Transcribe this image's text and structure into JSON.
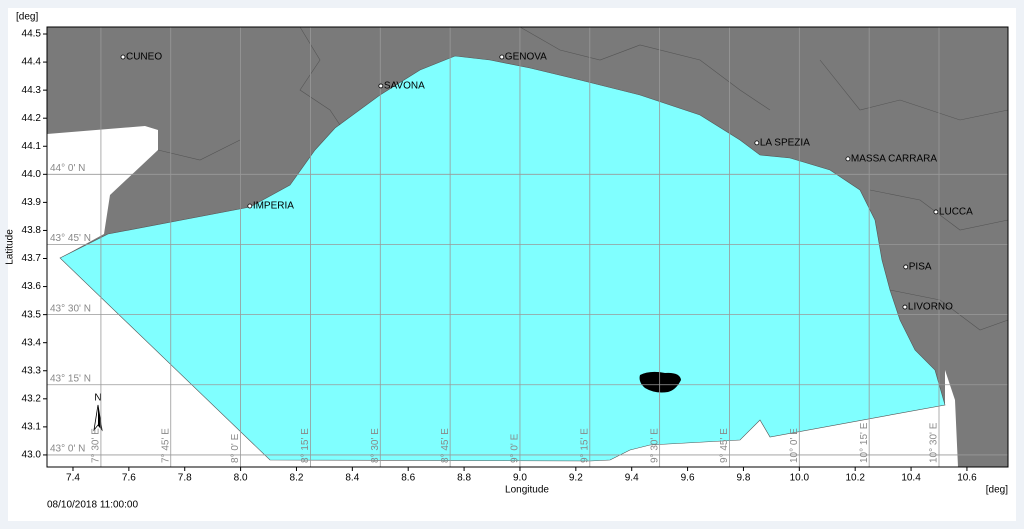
{
  "map": {
    "y_axis_unit": "[deg]",
    "x_axis_unit": "[deg]",
    "x_label": "Longitude",
    "y_label": "Latitude",
    "xlim": [
      7.307,
      10.747
    ],
    "ylim": [
      42.957,
      44.525
    ],
    "xticks": [
      7.4,
      7.6,
      7.8,
      {
        "value": 8,
        "label": "8.0"
      },
      8.2,
      8.4,
      8.6,
      8.8,
      {
        "value": 9,
        "label": "9.0"
      },
      9.2,
      9.4,
      9.6,
      9.8,
      {
        "value": 10,
        "label": "10.0"
      },
      10.2,
      10.4,
      10.6
    ],
    "yticks": [
      {
        "value": 43,
        "label": "43.0"
      },
      43.1,
      43.2,
      43.3,
      43.4,
      43.5,
      43.6,
      43.7,
      43.8,
      43.9,
      {
        "value": 44,
        "label": "44.0"
      },
      44.1,
      44.2,
      44.3,
      44.4,
      44.5
    ],
    "parallels": [
      {
        "value": 43,
        "label": "43° 0' N"
      },
      {
        "value": 43.25,
        "label": "43° 15' N"
      },
      {
        "value": 43.5,
        "label": "43° 30' N"
      },
      {
        "value": 43.75,
        "label": "43° 45' N"
      },
      {
        "value": 44,
        "label": "44° 0' N"
      }
    ],
    "meridians": [
      {
        "value": 7.5,
        "label": "7° 30' E"
      },
      {
        "value": 7.75,
        "label": "7° 45' E"
      },
      {
        "value": 8,
        "label": "8° 0' E"
      },
      {
        "value": 8.25,
        "label": "8° 15' E"
      },
      {
        "value": 8.5,
        "label": "8° 30' E"
      },
      {
        "value": 8.75,
        "label": "8° 45' E"
      },
      {
        "value": 9,
        "label": "9° 0' E"
      },
      {
        "value": 9.25,
        "label": "9° 15' E"
      },
      {
        "value": 9.5,
        "label": "9° 30' E"
      },
      {
        "value": 9.75,
        "label": "9° 45' E"
      },
      {
        "value": 10,
        "label": "10° 0' E"
      },
      {
        "value": 10.25,
        "label": "10° 15' E"
      },
      {
        "value": 10.5,
        "label": "10° 30' E"
      }
    ],
    "cities": [
      {
        "name": "CUNEO",
        "lon": 7.579,
        "lat": 44.418
      },
      {
        "name": "GENOVA",
        "lon": 8.935,
        "lat": 44.418
      },
      {
        "name": "SAVONA",
        "lon": 8.502,
        "lat": 44.315
      },
      {
        "name": "LA SPEZIA",
        "lon": 9.848,
        "lat": 44.112
      },
      {
        "name": "MASSA CARRARA",
        "lon": 10.174,
        "lat": 44.055
      },
      {
        "name": "IMPERIA",
        "lon": 8.033,
        "lat": 43.887
      },
      {
        "name": "LUCCA",
        "lon": 10.489,
        "lat": 43.866
      },
      {
        "name": "PISA",
        "lon": 10.381,
        "lat": 43.67
      },
      {
        "name": "LIVORNO",
        "lon": 10.378,
        "lat": 43.527
      }
    ],
    "north": "N",
    "timestamp": "08/10/2018 11:00:00"
  }
}
